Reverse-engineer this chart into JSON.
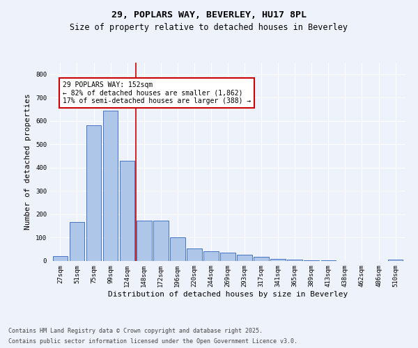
{
  "title": "29, POPLARS WAY, BEVERLEY, HU17 8PL",
  "subtitle": "Size of property relative to detached houses in Beverley",
  "xlabel": "Distribution of detached houses by size in Beverley",
  "ylabel": "Number of detached properties",
  "categories": [
    "27sqm",
    "51sqm",
    "75sqm",
    "99sqm",
    "124sqm",
    "148sqm",
    "172sqm",
    "196sqm",
    "220sqm",
    "244sqm",
    "269sqm",
    "293sqm",
    "317sqm",
    "341sqm",
    "365sqm",
    "389sqm",
    "413sqm",
    "438sqm",
    "462sqm",
    "486sqm",
    "510sqm"
  ],
  "values": [
    20,
    168,
    583,
    645,
    430,
    173,
    173,
    102,
    55,
    42,
    37,
    27,
    17,
    10,
    5,
    3,
    2,
    1,
    1,
    0,
    7
  ],
  "bar_color": "#aec6e8",
  "bar_edge_color": "#4472c4",
  "vline_color": "#cc0000",
  "vline_x_index": 5,
  "annotation_text": "29 POPLARS WAY: 152sqm\n← 82% of detached houses are smaller (1,862)\n17% of semi-detached houses are larger (388) →",
  "annotation_box_color": "#ffffff",
  "annotation_box_edge": "#cc0000",
  "ylim": [
    0,
    850
  ],
  "yticks": [
    0,
    100,
    200,
    300,
    400,
    500,
    600,
    700,
    800
  ],
  "footer1": "Contains HM Land Registry data © Crown copyright and database right 2025.",
  "footer2": "Contains public sector information licensed under the Open Government Licence v3.0.",
  "bg_color": "#eef2fa",
  "grid_color": "#ffffff",
  "title_fontsize": 9.5,
  "subtitle_fontsize": 8.5,
  "tick_fontsize": 6.5,
  "ylabel_fontsize": 8,
  "xlabel_fontsize": 8,
  "annotation_fontsize": 7,
  "footer_fontsize": 6
}
